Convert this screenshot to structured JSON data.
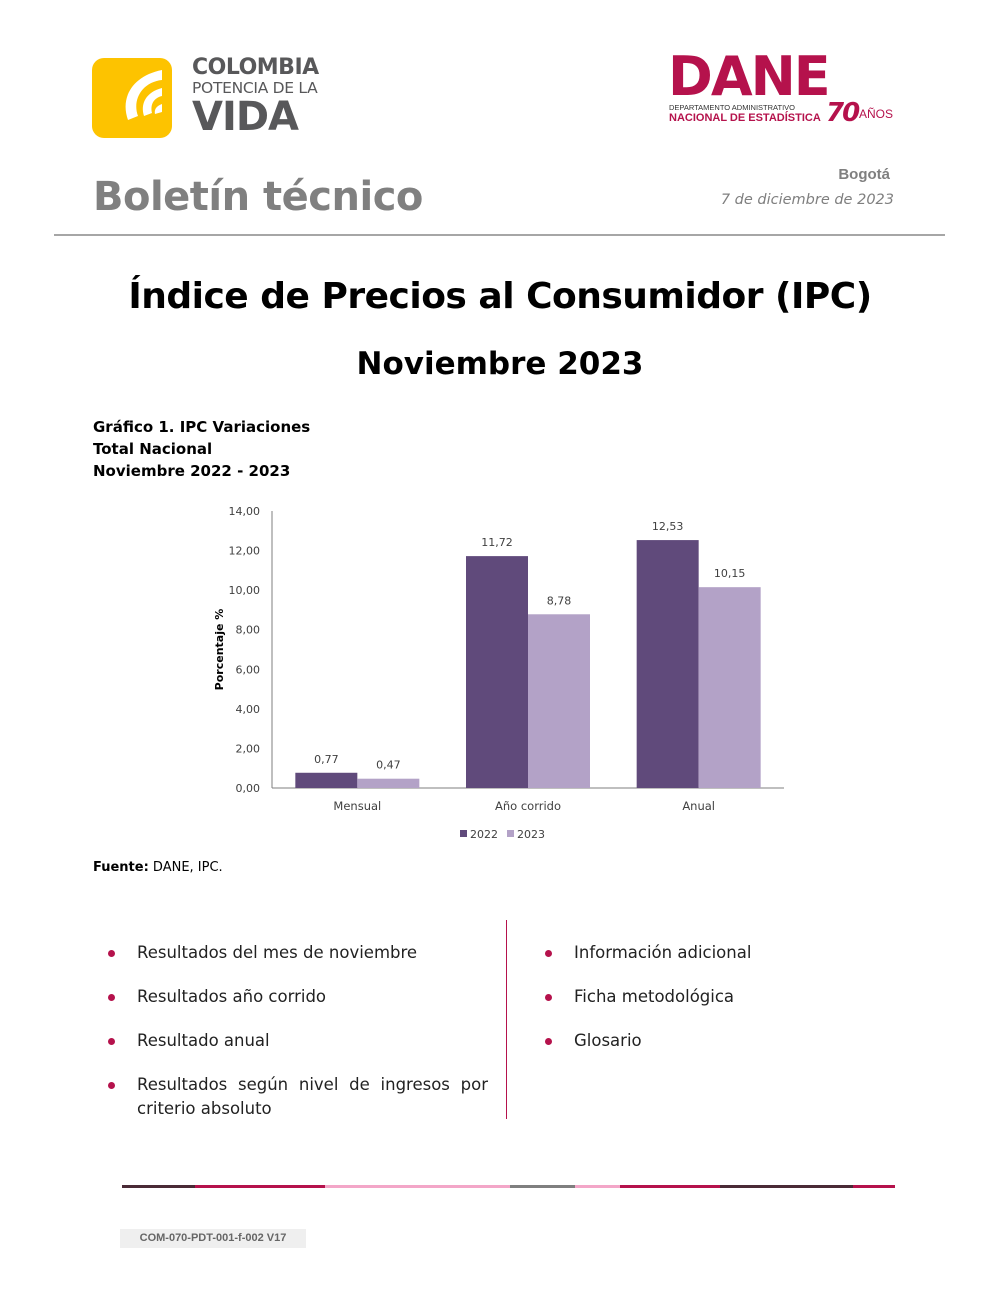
{
  "header": {
    "left_logo": {
      "line1": "COLOMBIA",
      "line2": "POTENCIA DE LA",
      "line3": "VIDA"
    },
    "right_logo": {
      "name": "DANE",
      "sub1": "DEPARTAMENTO ADMINISTRATIVO",
      "sub2": "NACIONAL DE ESTADÍSTICA",
      "anniv_num": "70",
      "anniv_word": "AÑOS"
    },
    "bulletin": "Boletín técnico",
    "city": "Bogotá",
    "date": "7 de diciembre de 2023"
  },
  "title": "Índice de Precios al Consumidor (IPC)",
  "subtitle": "Noviembre 2023",
  "chart_caption": {
    "line1": "Gráfico 1. IPC Variaciones",
    "line2": "Total Nacional",
    "line3": "Noviembre 2022 - 2023"
  },
  "chart_data": {
    "type": "bar",
    "categories": [
      "Mensual",
      "Año corrido",
      "Anual"
    ],
    "series": [
      {
        "name": "2022",
        "values": [
          0.77,
          11.72,
          12.53
        ],
        "labels": [
          "0,77",
          "11,72",
          "12,53"
        ],
        "color": "#604a7b"
      },
      {
        "name": "2023",
        "values": [
          0.47,
          8.78,
          10.15
        ],
        "labels": [
          "0,47",
          "8,78",
          "10,15"
        ],
        "color": "#b3a2c7"
      }
    ],
    "ylabel": "Porcentaje %",
    "ylim": [
      0,
      14
    ],
    "yticks": [
      "0,00",
      "2,00",
      "4,00",
      "6,00",
      "8,00",
      "10,00",
      "12,00",
      "14,00"
    ],
    "legend": "bottom",
    "grid": false
  },
  "source": {
    "label": "Fuente:",
    "text": " DANE, IPC."
  },
  "left_items": [
    "Resultados del mes de noviembre",
    "Resultados año corrido",
    "Resultado anual",
    "Resultados según nivel de ingresos por criterio absoluto"
  ],
  "right_items": [
    "Información adicional",
    "Ficha metodológica",
    "Glosario"
  ],
  "footer_code": "COM-070-PDT-001-f-002 V17",
  "colors": {
    "accent": "#b5124c",
    "logo_yellow": "#fdc300",
    "footer_bar": [
      "#4a2a36",
      "#b5124c",
      "#f3a6c8",
      "#7f7f7f",
      "#f3a6c8",
      "#b5124c",
      "#4a2a36",
      "#b5124c"
    ]
  }
}
